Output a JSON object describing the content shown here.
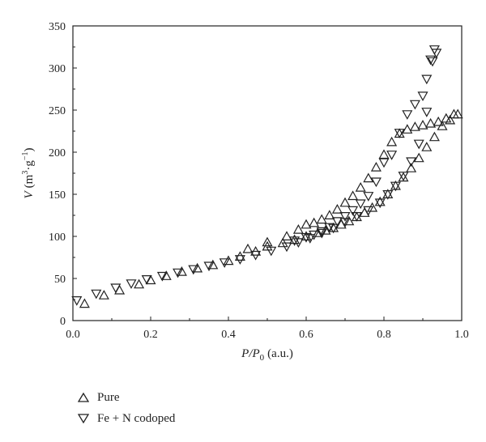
{
  "chart_data": {
    "type": "scatter",
    "xlim": [
      0.0,
      1.0
    ],
    "ylim": [
      0,
      350
    ],
    "xticks": [
      "0.0",
      "0.2",
      "0.4",
      "0.6",
      "0.8",
      "1.0"
    ],
    "yticks": [
      "0",
      "50",
      "100",
      "150",
      "200",
      "250",
      "300",
      "350"
    ],
    "xlabel": {
      "main": "P/P",
      "sub": "0",
      "unit": "(a.u.)"
    },
    "ylabel": {
      "main": "V",
      "unit_open": "(m",
      "sup1": "3",
      "mid": "·g",
      "sup2": "−1",
      "close": ")"
    },
    "grid": false,
    "legend_position": "below",
    "series": [
      {
        "name": "Pure",
        "marker": "triangle-up",
        "x": [
          0.03,
          0.08,
          0.12,
          0.17,
          0.2,
          0.24,
          0.28,
          0.32,
          0.36,
          0.4,
          0.43,
          0.47,
          0.5,
          0.54,
          0.57,
          0.6,
          0.63,
          0.65,
          0.67,
          0.69,
          0.71,
          0.73,
          0.75,
          0.77,
          0.79,
          0.81,
          0.83,
          0.85,
          0.87,
          0.89,
          0.91,
          0.93,
          0.95,
          0.97,
          0.99,
          0.98,
          0.96,
          0.94,
          0.92,
          0.9,
          0.88,
          0.86,
          0.84,
          0.82,
          0.8,
          0.78,
          0.76,
          0.74,
          0.72,
          0.7,
          0.68,
          0.66,
          0.64,
          0.62,
          0.6,
          0.58,
          0.55,
          0.5,
          0.45
        ],
        "y": [
          20,
          30,
          36,
          43,
          48,
          53,
          58,
          62,
          66,
          71,
          76,
          82,
          88,
          92,
          96,
          100,
          104,
          107,
          110,
          114,
          118,
          123,
          128,
          134,
          141,
          150,
          160,
          170,
          181,
          193,
          206,
          218,
          231,
          238,
          245,
          245,
          240,
          236,
          234,
          232,
          230,
          227,
          222,
          212,
          197,
          182,
          169,
          158,
          148,
          140,
          132,
          125,
          120,
          116,
          114,
          108,
          100,
          93,
          85
        ]
      },
      {
        "name": "Fe + N codoped",
        "marker": "triangle-down",
        "x": [
          0.01,
          0.06,
          0.11,
          0.15,
          0.19,
          0.23,
          0.27,
          0.31,
          0.35,
          0.39,
          0.43,
          0.47,
          0.51,
          0.55,
          0.58,
          0.61,
          0.64,
          0.67,
          0.7,
          0.73,
          0.76,
          0.79,
          0.81,
          0.83,
          0.85,
          0.87,
          0.89,
          0.91,
          0.925,
          0.935,
          0.93,
          0.92,
          0.91,
          0.9,
          0.88,
          0.86,
          0.84,
          0.82,
          0.8,
          0.78,
          0.76,
          0.74,
          0.72,
          0.7,
          0.68,
          0.66,
          0.64,
          0.62,
          0.6,
          0.57
        ],
        "y": [
          24,
          32,
          39,
          44,
          49,
          53,
          57,
          61,
          65,
          69,
          73,
          78,
          83,
          88,
          93,
          98,
          104,
          110,
          117,
          124,
          131,
          140,
          150,
          160,
          172,
          189,
          210,
          248,
          308,
          318,
          322,
          310,
          287,
          267,
          257,
          245,
          223,
          197,
          188,
          165,
          148,
          139,
          131,
          124,
          118,
          111,
          106,
          102,
          99,
          95
        ]
      }
    ]
  }
}
